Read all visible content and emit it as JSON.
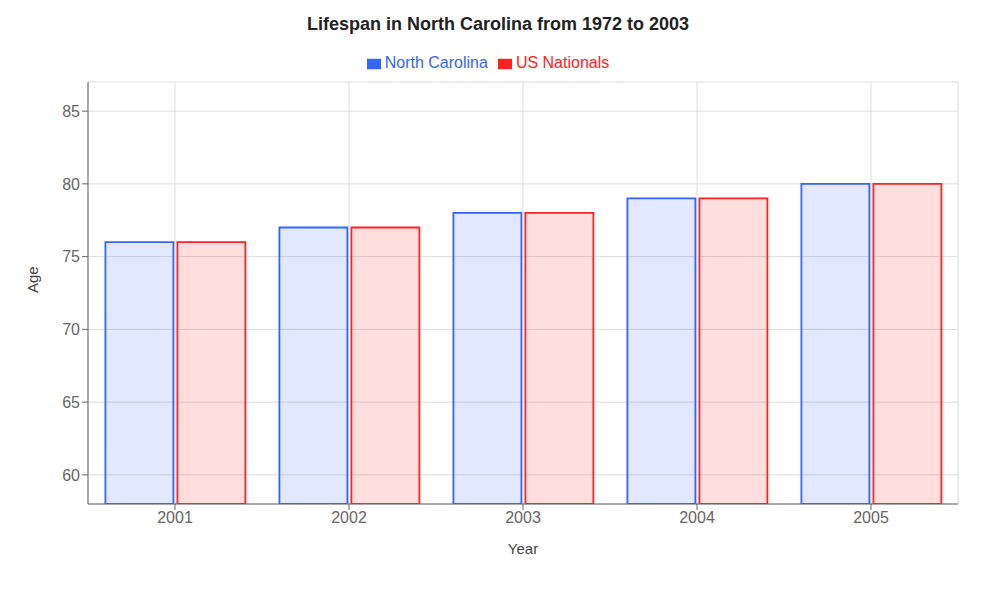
{
  "chart_data": {
    "type": "bar",
    "title": "Lifespan in North Carolina from 1972 to 2003",
    "xlabel": "Year",
    "ylabel": "Age",
    "categories": [
      "2001",
      "2002",
      "2003",
      "2004",
      "2005"
    ],
    "series": [
      {
        "name": "North Carolina",
        "color": "#3366ff",
        "values": [
          76,
          77,
          78,
          79,
          80
        ]
      },
      {
        "name": "US Nationals",
        "color": "#ff2222",
        "values": [
          76,
          77,
          78,
          79,
          80
        ]
      }
    ],
    "ylim": [
      58,
      87
    ],
    "yticks": [
      60,
      65,
      70,
      75,
      80,
      85
    ],
    "grid": true,
    "legend": "top"
  }
}
